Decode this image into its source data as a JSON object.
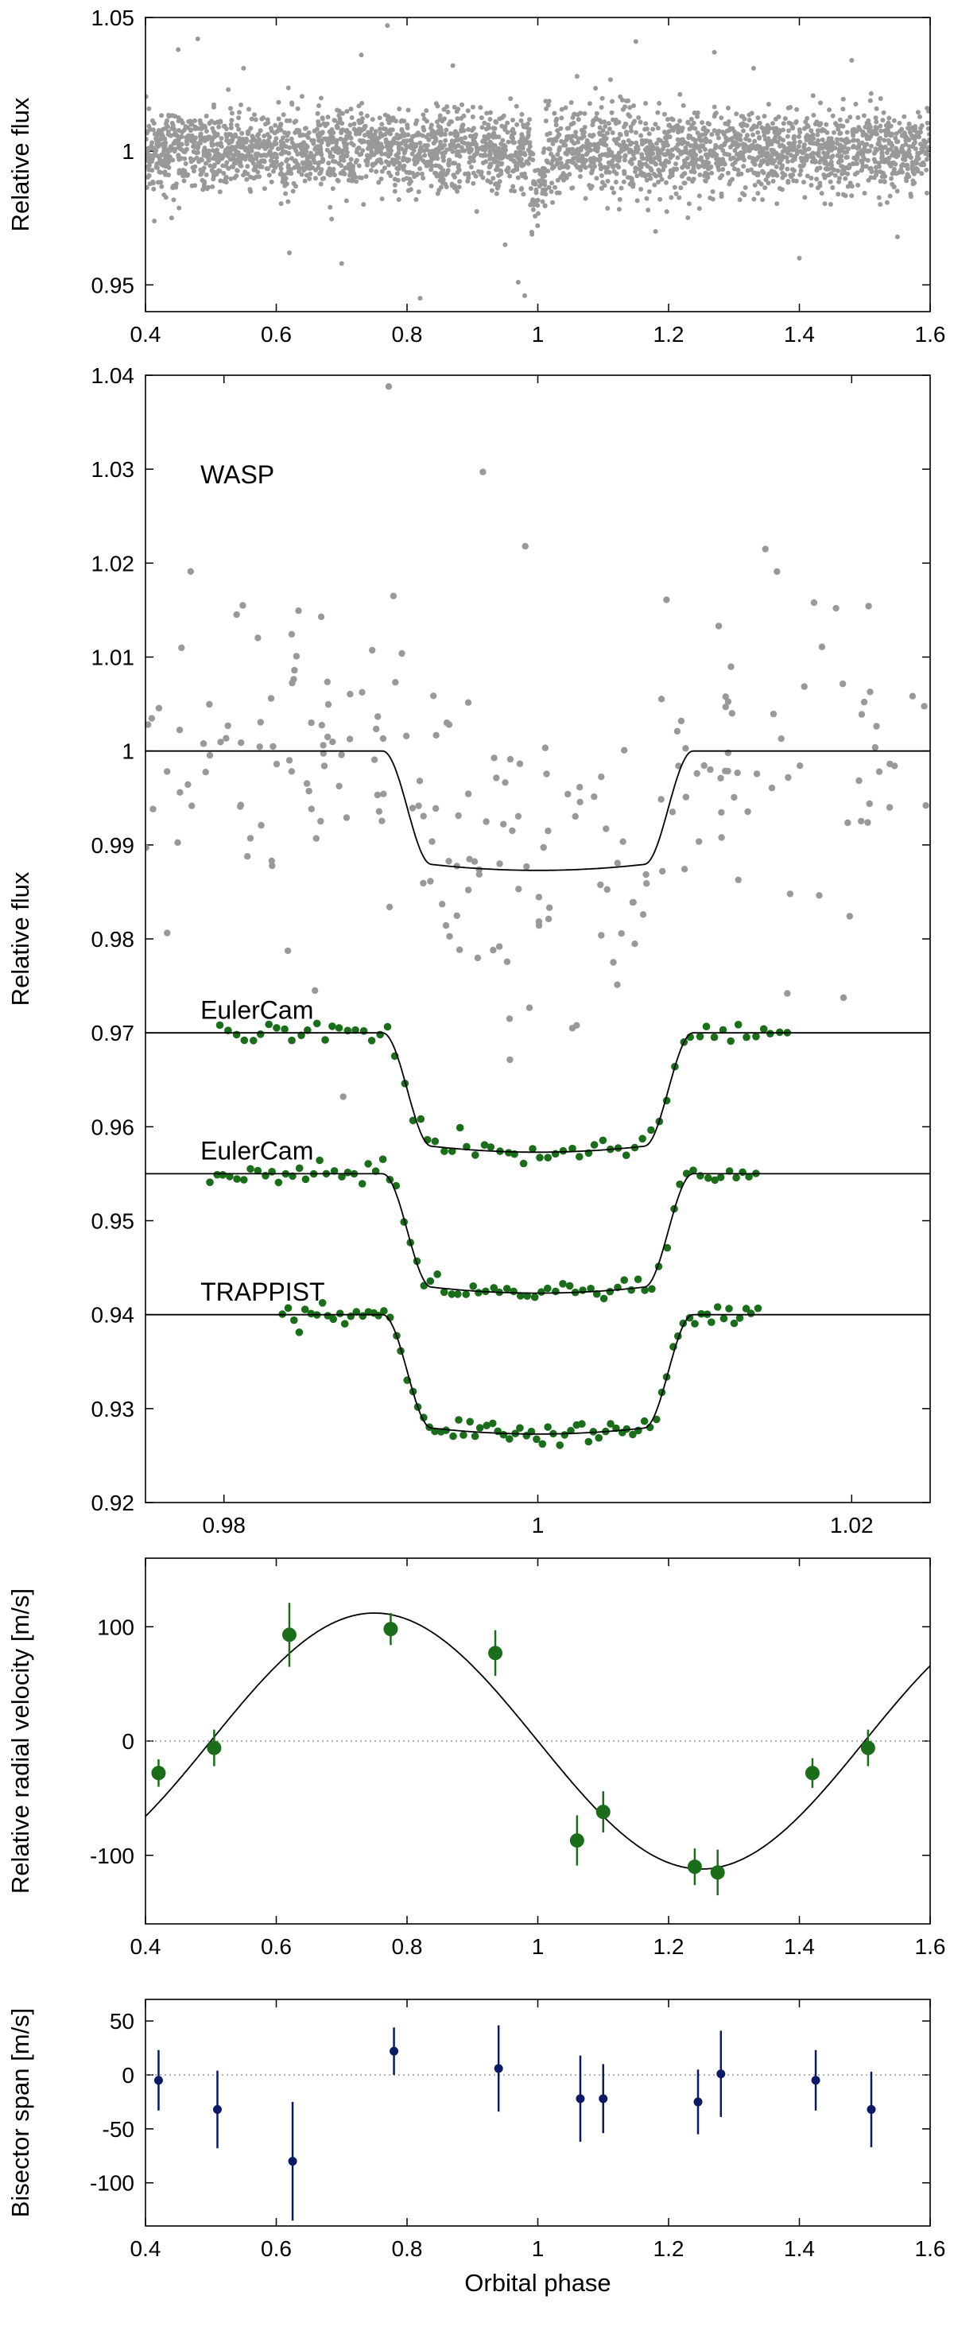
{
  "chart_data": [
    {
      "id": "top-flux",
      "type": "scatter",
      "xlim": [
        0.4,
        1.6
      ],
      "ylim": [
        0.94,
        1.05
      ],
      "xticks": [
        "0.4",
        "0.6",
        "0.8",
        "1",
        "1.2",
        "1.4",
        "1.6"
      ],
      "yticks": [
        "0.95",
        "1",
        "1.05"
      ],
      "ylabel": "Relative flux",
      "xlabel": "",
      "point_color": "#999999",
      "series_summary": {
        "n_points": 3200,
        "center": 1.0,
        "scatter": 0.0075,
        "transit_phase": 1.0,
        "transit_depth": 0.012
      },
      "outliers": [
        [
          0.45,
          1.038
        ],
        [
          0.48,
          1.042
        ],
        [
          0.55,
          1.031
        ],
        [
          0.62,
          0.962
        ],
        [
          0.7,
          0.958
        ],
        [
          0.73,
          1.036
        ],
        [
          0.77,
          1.047
        ],
        [
          0.82,
          0.945
        ],
        [
          0.87,
          1.032
        ],
        [
          0.95,
          0.965
        ],
        [
          0.97,
          0.951
        ],
        [
          0.98,
          0.946
        ],
        [
          1.06,
          1.028
        ],
        [
          1.15,
          1.041
        ],
        [
          1.18,
          0.97
        ],
        [
          1.27,
          1.037
        ],
        [
          1.33,
          1.031
        ],
        [
          1.4,
          0.96
        ],
        [
          1.48,
          1.034
        ],
        [
          1.55,
          0.968
        ]
      ]
    },
    {
      "id": "transit-zoom",
      "type": "scatter",
      "xlim": [
        0.975,
        1.025
      ],
      "ylim": [
        0.92,
        1.04
      ],
      "xticks": [
        "0.98",
        "1",
        "1.02"
      ],
      "yticks": [
        "0.92",
        "0.93",
        "0.94",
        "0.95",
        "0.96",
        "0.97",
        "0.98",
        "0.99",
        "1",
        "1.01",
        "1.02",
        "1.03",
        "1.04"
      ],
      "ylabel": "Relative flux",
      "xlabel": "",
      "model": {
        "ingress_start": 0.9901,
        "ingress_end": 0.9932,
        "egress_start": 1.0068,
        "egress_end": 1.0099,
        "depth": 0.0122
      },
      "annotations": [
        {
          "text": "WASP",
          "x": 0.9785,
          "y": 1.0285
        },
        {
          "text": "EulerCam",
          "x": 0.9785,
          "y": 0.9715
        },
        {
          "text": "EulerCam",
          "x": 0.9785,
          "y": 0.9565
        },
        {
          "text": "TRAPPIST",
          "x": 0.9785,
          "y": 0.9415
        }
      ],
      "series": [
        {
          "name": "WASP",
          "baseline": 1.0,
          "color": "#999999",
          "x_range": [
            0.975,
            1.025
          ],
          "n_points": 220,
          "scatter": 0.0085,
          "outliers": [
            [
              0.9858,
              0.9745
            ],
            [
              0.9876,
              0.9632
            ],
            [
              0.9905,
              1.0388
            ],
            [
              0.9908,
              1.0165
            ],
            [
              0.9942,
              1.003
            ],
            [
              0.9965,
              1.0297
            ],
            [
              0.9982,
              0.9715
            ],
            [
              0.9992,
              1.0218
            ],
            [
              1.0022,
              0.9705
            ],
            [
              1.0082,
              1.0161
            ],
            [
              1.0145,
              1.0215
            ],
            [
              0.9812,
              1.0155
            ],
            [
              1.019,
              1.0152
            ]
          ]
        },
        {
          "name": "EulerCam",
          "baseline": 0.97,
          "color": "#1a6e1a",
          "x_range": [
            0.9797,
            1.0163
          ],
          "n_points": 72,
          "scatter": 0.0006
        },
        {
          "name": "EulerCam",
          "baseline": 0.955,
          "color": "#1a6e1a",
          "x_range": [
            0.979,
            1.0143
          ],
          "n_points": 80,
          "scatter": 0.0006
        },
        {
          "name": "TRAPPIST",
          "baseline": 0.94,
          "color": "#1a6e1a",
          "x_range": [
            0.9837,
            1.0143
          ],
          "n_points": 85,
          "scatter": 0.0006
        }
      ]
    },
    {
      "id": "radial-velocity",
      "type": "scatter",
      "xlim": [
        0.4,
        1.6
      ],
      "ylim": [
        -160,
        160
      ],
      "xticks": [
        "0.4",
        "0.6",
        "0.8",
        "1",
        "1.2",
        "1.4",
        "1.6"
      ],
      "yticks": [
        "-100",
        "0",
        "100"
      ],
      "ylabel": "Relative radial velocity [m/s]",
      "xlabel": "",
      "color": "#1a6e1a",
      "model": {
        "amplitude": 112,
        "phase_of_max": 0.75
      },
      "points": [
        {
          "x": 0.42,
          "y": -28,
          "err": 12
        },
        {
          "x": 0.505,
          "y": -6,
          "err": 16
        },
        {
          "x": 0.62,
          "y": 93,
          "err": 28
        },
        {
          "x": 0.775,
          "y": 98,
          "err": 14
        },
        {
          "x": 0.935,
          "y": 77,
          "err": 20
        },
        {
          "x": 1.06,
          "y": -87,
          "err": 22
        },
        {
          "x": 1.1,
          "y": -62,
          "err": 18
        },
        {
          "x": 1.24,
          "y": -110,
          "err": 16
        },
        {
          "x": 1.275,
          "y": -115,
          "err": 20
        },
        {
          "x": 1.42,
          "y": -28,
          "err": 13
        },
        {
          "x": 1.505,
          "y": -6,
          "err": 16
        }
      ]
    },
    {
      "id": "bisector",
      "type": "scatter",
      "xlim": [
        0.4,
        1.6
      ],
      "ylim": [
        -140,
        70
      ],
      "xticks": [
        "0.4",
        "0.6",
        "0.8",
        "1",
        "1.2",
        "1.4",
        "1.6"
      ],
      "yticks": [
        "-100",
        "-50",
        "0",
        "50"
      ],
      "ylabel": "Bisector span [m/s]",
      "xlabel": "Orbital phase",
      "color": "#0b1a66",
      "points": [
        {
          "x": 0.42,
          "y": -5,
          "err": 28
        },
        {
          "x": 0.51,
          "y": -32,
          "err": 36
        },
        {
          "x": 0.625,
          "y": -80,
          "err": 55
        },
        {
          "x": 0.78,
          "y": 22,
          "err": 22
        },
        {
          "x": 0.94,
          "y": 6,
          "err": 40
        },
        {
          "x": 1.065,
          "y": -22,
          "err": 40
        },
        {
          "x": 1.1,
          "y": -22,
          "err": 32
        },
        {
          "x": 1.245,
          "y": -25,
          "err": 30
        },
        {
          "x": 1.28,
          "y": 1,
          "err": 40
        },
        {
          "x": 1.425,
          "y": -5,
          "err": 28
        },
        {
          "x": 1.51,
          "y": -32,
          "err": 35
        }
      ]
    }
  ]
}
